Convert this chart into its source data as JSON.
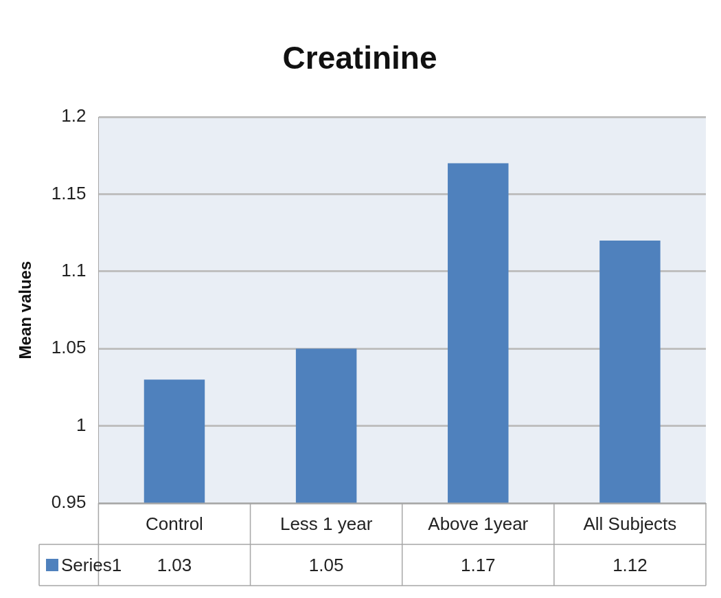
{
  "chart_data": {
    "type": "bar",
    "title": "Creatinine",
    "ylabel": "Mean values",
    "categories": [
      "Control",
      "Less 1 year",
      "Above 1year",
      "All Subjects"
    ],
    "series": [
      {
        "name": "Series1",
        "color": "#4f81bd",
        "values": [
          1.03,
          1.05,
          1.17,
          1.12
        ]
      }
    ],
    "ylim": [
      0.95,
      1.2
    ],
    "yticks": [
      0.95,
      1,
      1.05,
      1.1,
      1.15,
      1.2
    ],
    "grid": "y",
    "legend": "bottom",
    "data_labels": true
  }
}
